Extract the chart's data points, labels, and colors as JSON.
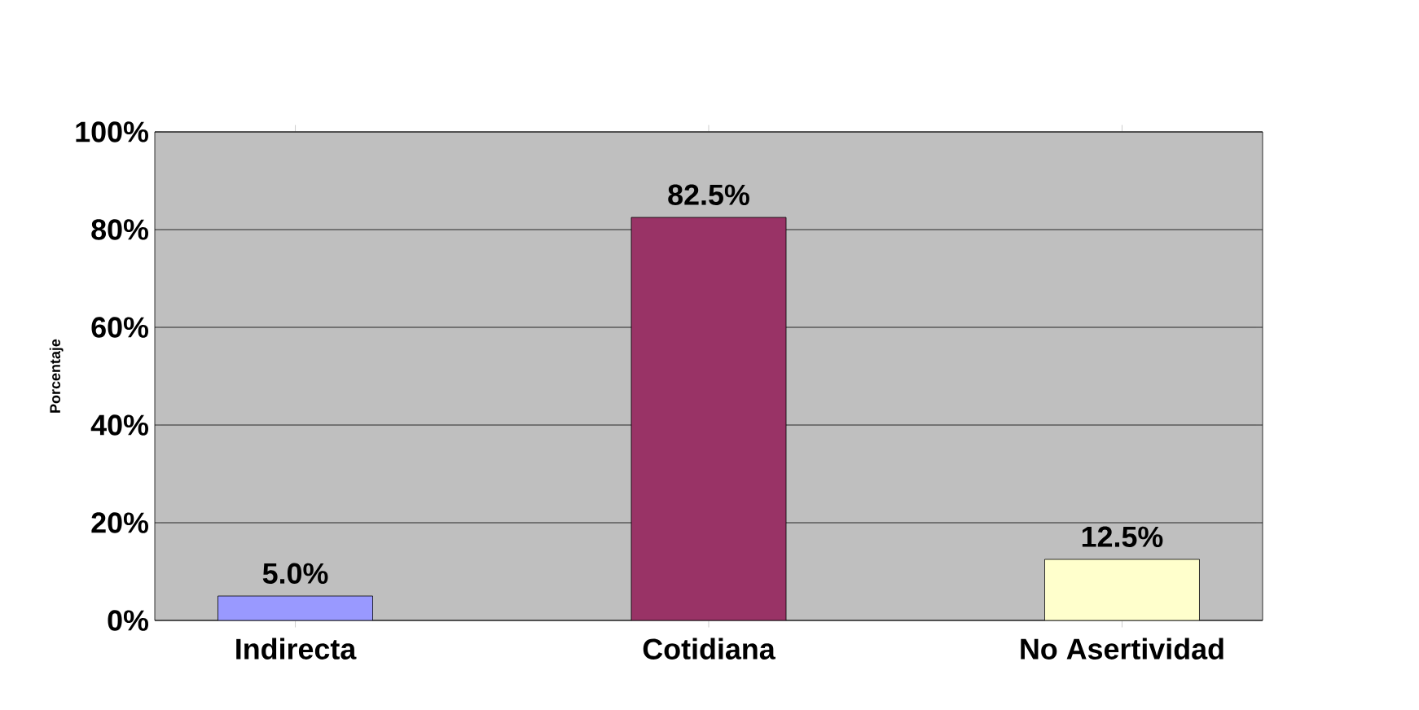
{
  "chart_data": {
    "type": "bar",
    "ylabel": "Porcentaje",
    "categories": [
      "Indirecta",
      "Cotidiana",
      "No Asertividad"
    ],
    "values": [
      5.0,
      82.5,
      12.5
    ],
    "colors": [
      "#9999ff",
      "#993366",
      "#ffffcc"
    ],
    "value_labels": [
      "5.0%",
      "82.5%",
      "12.5%"
    ],
    "ylim": [
      0,
      100
    ],
    "yticks": [
      {
        "value": 0,
        "label": "0%"
      },
      {
        "value": 20,
        "label": "20%"
      },
      {
        "value": 40,
        "label": "40%"
      },
      {
        "value": 60,
        "label": "60%"
      },
      {
        "value": 80,
        "label": "80%"
      },
      {
        "value": 100,
        "label": "100%"
      }
    ],
    "grid": "y"
  }
}
